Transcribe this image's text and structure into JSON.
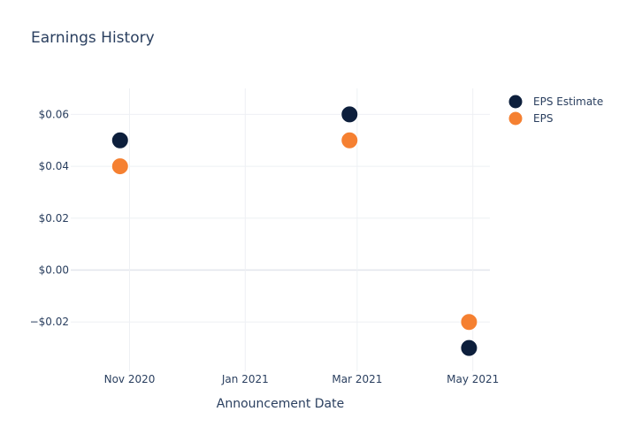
{
  "chart_data": {
    "type": "scatter",
    "title": "Earnings History",
    "xlabel": "Announcement Date",
    "ylabel": "",
    "x_axis": {
      "type": "date",
      "range": [
        "2020-10-01",
        "2021-05-10"
      ],
      "ticks": [
        {
          "date": "2020-11-01",
          "label": "Nov 2020"
        },
        {
          "date": "2021-01-01",
          "label": "Jan 2021"
        },
        {
          "date": "2021-03-01",
          "label": "Mar 2021"
        },
        {
          "date": "2021-05-01",
          "label": "May 2021"
        }
      ]
    },
    "y_axis": {
      "range": [
        -0.039,
        0.07
      ],
      "ticks": [
        {
          "value": 0.06,
          "label": "$0.06"
        },
        {
          "value": 0.04,
          "label": "$0.04"
        },
        {
          "value": 0.02,
          "label": "$0.02"
        },
        {
          "value": 0.0,
          "label": "$0.00"
        },
        {
          "value": -0.02,
          "label": "−$0.02"
        }
      ]
    },
    "grid": true,
    "legend_position": "top-right",
    "series": [
      {
        "name": "EPS Estimate",
        "color": "#0d1f3c",
        "points": [
          {
            "x": "2020-10-27",
            "y": 0.05
          },
          {
            "x": "2021-02-25",
            "y": 0.06
          },
          {
            "x": "2021-04-29",
            "y": -0.03
          }
        ]
      },
      {
        "name": "EPS",
        "color": "#f58031",
        "points": [
          {
            "x": "2020-10-27",
            "y": 0.04
          },
          {
            "x": "2021-02-25",
            "y": 0.05
          },
          {
            "x": "2021-04-29",
            "y": -0.02
          }
        ]
      }
    ]
  }
}
